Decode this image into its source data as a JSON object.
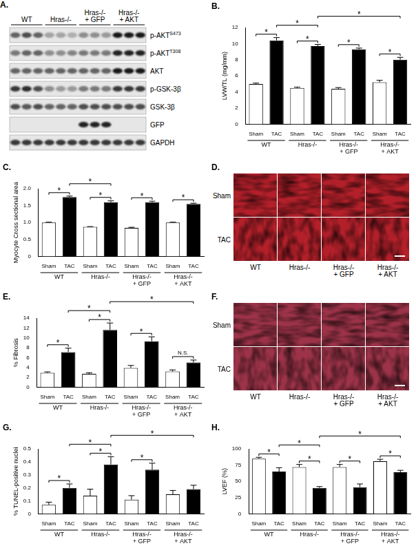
{
  "blot": {
    "panel": "A.",
    "groups": [
      "WT",
      "Hras-/-",
      "Hras-/-\n+ GFP",
      "Hras-/-\n+ AKT"
    ],
    "rows": [
      {
        "label": "p-AKT",
        "superscript": "S473",
        "intensity": [
          0.6,
          0.7,
          0.6,
          0.3,
          0.3,
          0.25,
          0.4,
          0.4,
          0.35,
          0.95,
          0.95,
          0.95
        ]
      },
      {
        "label": "p-AKT",
        "superscript": "T308",
        "intensity": [
          0.5,
          0.6,
          0.6,
          0.4,
          0.4,
          0.45,
          0.5,
          0.5,
          0.5,
          0.9,
          0.9,
          0.9
        ]
      },
      {
        "label": "AKT",
        "intensity": [
          0.6,
          0.6,
          0.6,
          0.6,
          0.6,
          0.6,
          0.6,
          0.6,
          0.6,
          0.95,
          0.95,
          0.95
        ]
      },
      {
        "label": "p-GSK-3β",
        "intensity": [
          0.8,
          0.85,
          0.7,
          0.4,
          0.35,
          0.35,
          0.5,
          0.5,
          0.5,
          0.8,
          0.8,
          0.8
        ]
      },
      {
        "label": "GSK-3β",
        "intensity": [
          0.7,
          0.65,
          0.7,
          0.6,
          0.6,
          0.6,
          0.7,
          0.7,
          0.7,
          0.7,
          0.7,
          0.7
        ]
      },
      {
        "label": "GFP",
        "intensity": [
          0,
          0,
          0,
          0,
          0,
          0,
          0.9,
          0.9,
          0.9,
          0,
          0,
          0
        ]
      },
      {
        "label": "GAPDH",
        "intensity": [
          0.8,
          0.8,
          0.8,
          0.8,
          0.8,
          0.8,
          0.8,
          0.8,
          0.8,
          0.8,
          0.8,
          0.8
        ]
      }
    ]
  },
  "chart_data": [
    {
      "type": "bar",
      "panel": "B.",
      "y_label": "LVW/TL (mg/mm)",
      "categories": [
        "Sham",
        "TAC",
        "Sham",
        "TAC",
        "Sham",
        "TAC",
        "Sham",
        "TAC"
      ],
      "groups": [
        "WT",
        "Hras-/-",
        "Hras-/-\n+ GFP",
        "Hras-/-\n+ AKT"
      ],
      "values": [
        5.0,
        10.4,
        4.5,
        9.7,
        4.4,
        9.3,
        5.2,
        8.0
      ],
      "errors": [
        0.1,
        0.35,
        0.1,
        0.2,
        0.15,
        0.15,
        0.25,
        0.3
      ],
      "colors": [
        "#ffffff",
        "#000000",
        "#ffffff",
        "#000000",
        "#ffffff",
        "#000000",
        "#ffffff",
        "#000000"
      ],
      "ylim": [
        0,
        12
      ],
      "yticks": [
        0,
        2,
        4,
        6,
        8,
        10,
        12
      ],
      "brackets": [
        {
          "from": 0,
          "to": 1,
          "label": "*"
        },
        {
          "from": 1,
          "to": 3,
          "label": "*"
        },
        {
          "from": 2,
          "to": 3,
          "label": "*"
        },
        {
          "from": 3,
          "to": 7,
          "label": "*"
        },
        {
          "from": 4,
          "to": 5,
          "label": "*"
        },
        {
          "from": 6,
          "to": 7,
          "label": "*"
        }
      ]
    },
    {
      "type": "bar",
      "panel": "C.",
      "y_label": "Myocyte Cross sectional area",
      "categories": [
        "Sham",
        "TAC",
        "Sham",
        "TAC",
        "Sham",
        "TAC",
        "Sham",
        "TAC"
      ],
      "groups": [
        "WT",
        "Hras-/-",
        "Hras-/-\n+ GFP",
        "Hras-/-\n+ AKT"
      ],
      "values": [
        1.0,
        1.75,
        0.87,
        1.6,
        0.84,
        1.6,
        1.0,
        1.55
      ],
      "errors": [
        0.01,
        0.03,
        0.01,
        0.04,
        0.02,
        0.03,
        0.01,
        0.02
      ],
      "colors": [
        "#ffffff",
        "#000000",
        "#ffffff",
        "#000000",
        "#ffffff",
        "#000000",
        "#ffffff",
        "#000000"
      ],
      "ylim": [
        0,
        2
      ],
      "yticks": [
        0,
        0.5,
        {
          "value": 1,
          "label": "1.0"
        },
        1.5,
        {
          "value": 2,
          "label": "2.0"
        }
      ],
      "brackets": [
        {
          "from": 0,
          "to": 1,
          "label": "*"
        },
        {
          "from": 1,
          "to": 3,
          "label": "*"
        },
        {
          "from": 2,
          "to": 3,
          "label": "*"
        },
        {
          "from": 4,
          "to": 5,
          "label": "*"
        },
        {
          "from": 6,
          "to": 7,
          "label": "*"
        }
      ]
    },
    {
      "type": "bar",
      "panel": "E.",
      "y_label": "% Fibrosis",
      "categories": [
        "Sham",
        "TAC",
        "Sham",
        "TAC",
        "Sham",
        "TAC",
        "Sham",
        "TAC"
      ],
      "groups": [
        "WT",
        "Hras-/-",
        "Hras-/-\n+ GFP",
        "Hras-/-\n+ AKT"
      ],
      "values": [
        2.9,
        7.1,
        2.7,
        11.6,
        3.9,
        9.3,
        3.2,
        5.0
      ],
      "errors": [
        0.2,
        0.8,
        0.2,
        1.4,
        0.5,
        0.9,
        0.3,
        0.5
      ],
      "colors": [
        "#ffffff",
        "#000000",
        "#ffffff",
        "#000000",
        "#ffffff",
        "#000000",
        "#ffffff",
        "#000000"
      ],
      "ylim": [
        0,
        14
      ],
      "yticks": [
        0,
        2,
        4,
        6,
        8,
        10,
        12,
        14
      ],
      "brackets": [
        {
          "from": 0,
          "to": 1,
          "label": "*"
        },
        {
          "from": 1,
          "to": 3,
          "label": "*"
        },
        {
          "from": 2,
          "to": 3,
          "label": "*"
        },
        {
          "from": 3,
          "to": 7,
          "label": "*"
        },
        {
          "from": 4,
          "to": 5,
          "label": "*"
        },
        {
          "from": 6,
          "to": 7,
          "label": "N.S."
        }
      ]
    },
    {
      "type": "bar",
      "panel": "G.",
      "y_label": "% TUNEL-positive nuclei",
      "categories": [
        "Sham",
        "TAC",
        "Sham",
        "TAC",
        "Sham",
        "TAC",
        "Sham",
        "TAC"
      ],
      "groups": [
        "WT",
        "Hras-/-",
        "Hras-/-\n+ GFP",
        "Hras-/-\n+ AKT"
      ],
      "values": [
        0.07,
        0.2,
        0.14,
        0.38,
        0.11,
        0.34,
        0.15,
        0.19
      ],
      "errors": [
        0.02,
        0.03,
        0.05,
        0.06,
        0.03,
        0.05,
        0.03,
        0.03
      ],
      "colors": [
        "#ffffff",
        "#000000",
        "#ffffff",
        "#000000",
        "#ffffff",
        "#000000",
        "#ffffff",
        "#000000"
      ],
      "ylim": [
        0,
        0.5
      ],
      "yticks": [
        0,
        0.1,
        0.2,
        0.3,
        0.4,
        0.5
      ],
      "brackets": [
        {
          "from": 0,
          "to": 1,
          "label": "*"
        },
        {
          "from": 1,
          "to": 3,
          "label": "*"
        },
        {
          "from": 2,
          "to": 3,
          "label": "*"
        },
        {
          "from": 3,
          "to": 7,
          "label": "*"
        },
        {
          "from": 4,
          "to": 5,
          "label": "*"
        }
      ]
    },
    {
      "type": "bar",
      "panel": "H.",
      "y_label": "LVEF (%)",
      "categories": [
        "Sham",
        "TAC",
        "Sham",
        "TAC",
        "Sham",
        "TAC",
        "Sham",
        "TAC"
      ],
      "groups": [
        "WT",
        "Hras-/-",
        "Hras-/-\n+ GFP",
        "Hras-/-\n+ AKT"
      ],
      "values": [
        85,
        65,
        72,
        40,
        72,
        41,
        81,
        64
      ],
      "errors": [
        2,
        6,
        4,
        2,
        4,
        5,
        3,
        3
      ],
      "colors": [
        "#ffffff",
        "#000000",
        "#ffffff",
        "#000000",
        "#ffffff",
        "#000000",
        "#ffffff",
        "#000000"
      ],
      "ylim": [
        0,
        100
      ],
      "yticks": [
        0,
        25,
        50,
        75,
        100
      ],
      "brackets": [
        {
          "from": 0,
          "to": 1,
          "label": "*"
        },
        {
          "from": 1,
          "to": 3,
          "label": "*"
        },
        {
          "from": 2,
          "to": 3,
          "label": "*"
        },
        {
          "from": 3,
          "to": 7,
          "label": "*"
        },
        {
          "from": 4,
          "to": 5,
          "label": "*"
        },
        {
          "from": 6,
          "to": 7,
          "label": "*"
        }
      ]
    }
  ],
  "images": [
    {
      "panel": "D.",
      "rows": [
        "Sham",
        "TAC"
      ],
      "columns": [
        "WT",
        "Hras-/-",
        "Hras-/-\n+ GFP",
        "Hras-/-\n+ AKT"
      ],
      "colors": [
        "#b3202a"
      ]
    },
    {
      "panel": "F.",
      "rows": [
        "Sham",
        "TAC"
      ],
      "columns": [
        "WT",
        "Hras-/-",
        "Hras-/-\n+ GFP",
        "Hras-/-\n+ AKT"
      ],
      "colors": [
        "#9c3348",
        "#4a62c0"
      ]
    }
  ]
}
